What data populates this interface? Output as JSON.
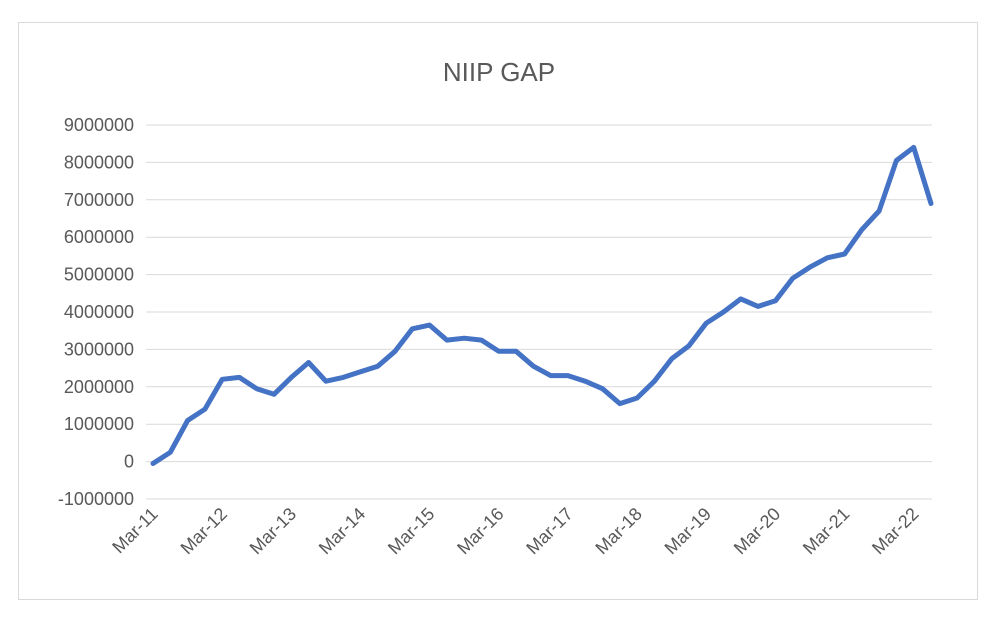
{
  "chart_data": {
    "type": "line",
    "title": "NIIP GAP",
    "xlabel": "",
    "ylabel": "",
    "ylim": [
      -1000000,
      9000000
    ],
    "yticks": [
      9000000,
      8000000,
      7000000,
      6000000,
      5000000,
      4000000,
      3000000,
      2000000,
      1000000,
      0,
      -1000000
    ],
    "ytick_labels": [
      "9000000",
      "8000000",
      "7000000",
      "6000000",
      "5000000",
      "4000000",
      "3000000",
      "2000000",
      "1000000",
      "0",
      "-1000000"
    ],
    "xtick_labels": [
      "Mar-11",
      "Mar-12",
      "Mar-13",
      "Mar-14",
      "Mar-15",
      "Mar-16",
      "Mar-17",
      "Mar-18",
      "Mar-19",
      "Mar-20",
      "Mar-21",
      "Mar-22"
    ],
    "grid": true,
    "legend": "none",
    "series": [
      {
        "color": "#4472c4",
        "x": [
          "Mar-11",
          "Jun-11",
          "Sep-11",
          "Dec-11",
          "Mar-12",
          "Jun-12",
          "Sep-12",
          "Dec-12",
          "Mar-13",
          "Jun-13",
          "Sep-13",
          "Dec-13",
          "Mar-14",
          "Jun-14",
          "Sep-14",
          "Dec-14",
          "Mar-15",
          "Jun-15",
          "Sep-15",
          "Dec-15",
          "Mar-16",
          "Jun-16",
          "Sep-16",
          "Dec-16",
          "Mar-17",
          "Jun-17",
          "Sep-17",
          "Dec-17",
          "Mar-18",
          "Jun-18",
          "Sep-18",
          "Dec-18",
          "Mar-19",
          "Jun-19",
          "Sep-19",
          "Dec-19",
          "Mar-20",
          "Jun-20",
          "Sep-20",
          "Dec-20",
          "Mar-21",
          "Jun-21",
          "Sep-21",
          "Dec-21",
          "Mar-22",
          "Jun-22"
        ],
        "values": [
          -50000,
          250000,
          1100000,
          1400000,
          2200000,
          2250000,
          1950000,
          1800000,
          2250000,
          2650000,
          2150000,
          2250000,
          2400000,
          2550000,
          2950000,
          3550000,
          3650000,
          3250000,
          3300000,
          3250000,
          2950000,
          2950000,
          2550000,
          2300000,
          2300000,
          2150000,
          1950000,
          1550000,
          1700000,
          2150000,
          2750000,
          3100000,
          3700000,
          4000000,
          4350000,
          4150000,
          4300000,
          4900000,
          5200000,
          5450000,
          5550000,
          6200000,
          6700000,
          8050000,
          8400000,
          6900000
        ]
      }
    ]
  }
}
